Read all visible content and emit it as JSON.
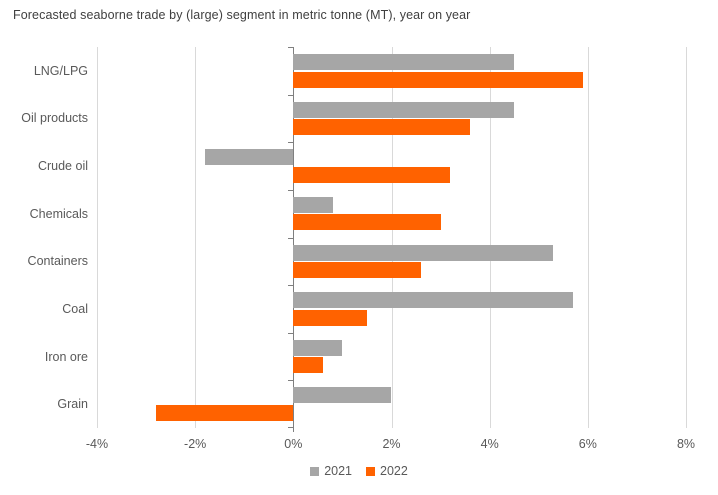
{
  "title": "Forecasted seaborne trade by (large) segment in metric tonne (MT), year on year",
  "chart_data": {
    "type": "bar",
    "orientation": "horizontal",
    "title": "Forecasted seaborne trade by (large) segment in metric tonne (MT), year on year",
    "categories": [
      "LNG/LPG",
      "Oil products",
      "Crude oil",
      "Chemicals",
      "Containers",
      "Coal",
      "Iron ore",
      "Grain"
    ],
    "series": [
      {
        "name": "2021",
        "color": "#a6a6a6",
        "values": [
          4.5,
          4.5,
          -1.8,
          0.8,
          5.3,
          5.7,
          1.0,
          2.0
        ]
      },
      {
        "name": "2022",
        "color": "#ff6200",
        "values": [
          5.9,
          3.6,
          3.2,
          3.0,
          2.6,
          1.5,
          0.6,
          -2.8
        ]
      }
    ],
    "xlim": [
      -4,
      8
    ],
    "x_tick_values": [
      -4,
      -2,
      0,
      2,
      4,
      6,
      8
    ],
    "x_tick_labels": [
      "-4%",
      "-2%",
      "0%",
      "2%",
      "4%",
      "6%",
      "8%"
    ],
    "unit": "%",
    "grid": true,
    "legend_position": "bottom"
  },
  "styles": {
    "background": "#ffffff",
    "gridline_color": "#d9d9d9",
    "axis_color": "#7f7f7f",
    "title_color": "#404040",
    "label_color": "#595959",
    "series_2021_color": "#a6a6a6",
    "series_2022_color": "#ff6200"
  }
}
